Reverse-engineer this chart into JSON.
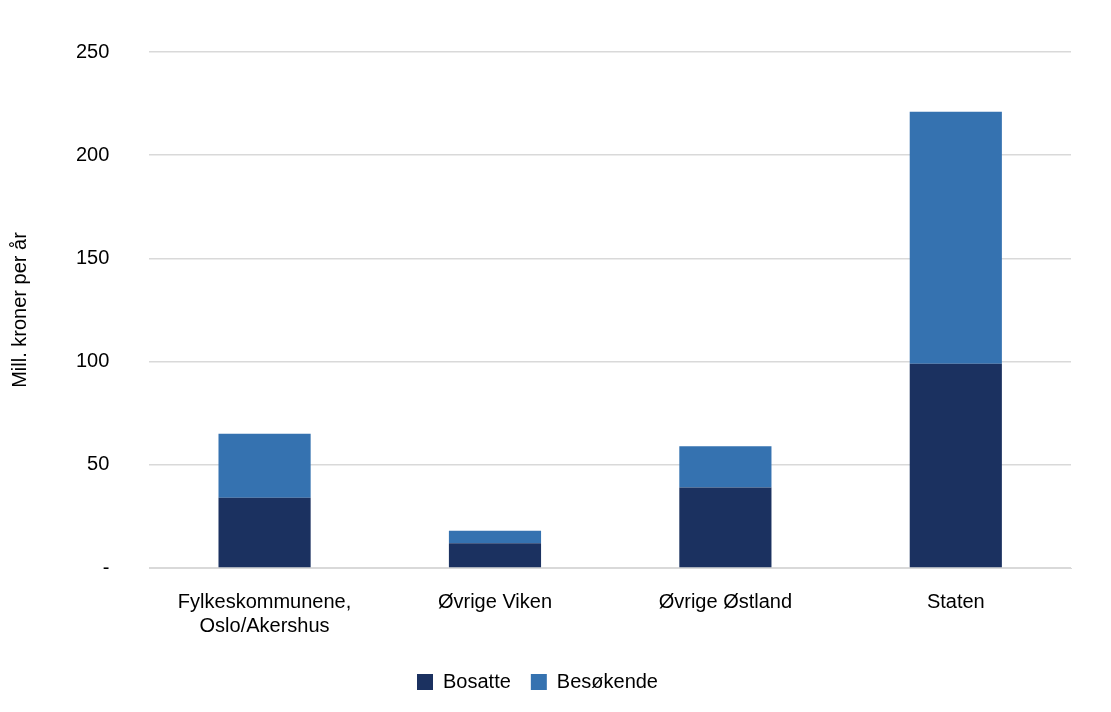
{
  "chart_data": {
    "type": "bar",
    "stacked": true,
    "ylabel": "Mill. kroner per år",
    "categories": [
      "Fylkeskommunene, Oslo/Akershus",
      "Øvrige Viken",
      "Øvrige Østland",
      "Staten"
    ],
    "series": [
      {
        "name": "Bosatte",
        "color": "#1b3160",
        "values": [
          34,
          12,
          39,
          99
        ]
      },
      {
        "name": "Besøkende",
        "color": "#3572b0",
        "values": [
          31,
          6,
          20,
          122
        ]
      }
    ],
    "ylim": [
      0,
      250
    ],
    "yticks": [
      {
        "value": 0,
        "label": "-"
      },
      50,
      100,
      150,
      200,
      250
    ],
    "grid": "y",
    "legend": "bottom"
  }
}
